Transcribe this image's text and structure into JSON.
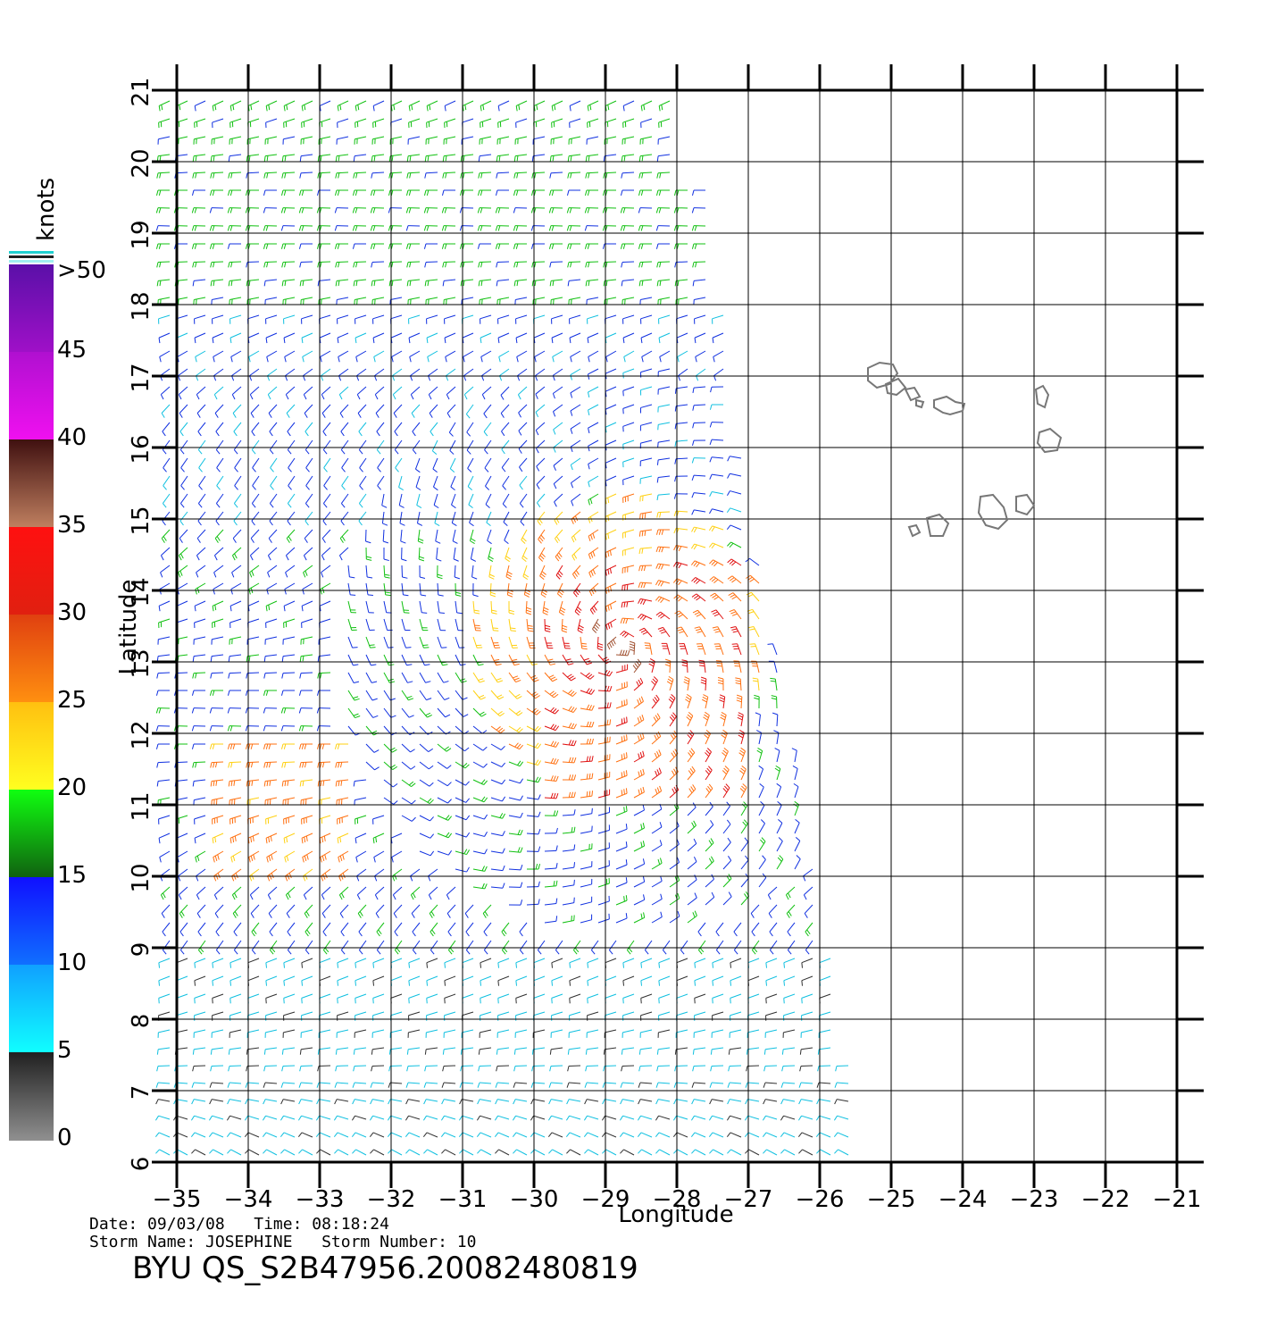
{
  "title": "BYU QS_S2B47956.20082480819",
  "info": {
    "date_line": "Date: 09/03/08   Time: 08:18:24",
    "storm_line": "Storm Name: JOSEPHINE   Storm Number: 10"
  },
  "axes": {
    "xlabel": "Longitude",
    "ylabel": "Latitude",
    "x_ticks": [
      "−35",
      "−34",
      "−33",
      "−32",
      "−31",
      "−30",
      "−29",
      "−28",
      "−27",
      "−26",
      "−25",
      "−24",
      "−23",
      "−22",
      "−21"
    ],
    "y_ticks": [
      "6",
      "7",
      "8",
      "9",
      "10",
      "11",
      "12",
      "13",
      "14",
      "15",
      "16",
      "17",
      "18",
      "19",
      "20",
      "21"
    ],
    "xlim": [
      -35,
      -21
    ],
    "ylim": [
      6,
      21
    ]
  },
  "colorbar": {
    "unit": "knots",
    "labels": [
      ">50",
      "45",
      "40",
      "35",
      "30",
      "25",
      "20",
      "15",
      "10",
      "5",
      "0"
    ],
    "bands": [
      {
        "from": 50,
        "to": 45,
        "top": "#5a10a8",
        "bottom": "#a010c8"
      },
      {
        "from": 45,
        "to": 40,
        "top": "#b010d0",
        "bottom": "#f010f0"
      },
      {
        "from": 40,
        "to": 35,
        "top": "#401010",
        "bottom": "#c08060"
      },
      {
        "from": 35,
        "to": 30,
        "top": "#ff1010",
        "bottom": "#e02010"
      },
      {
        "from": 30,
        "to": 25,
        "top": "#e04010",
        "bottom": "#ff9010"
      },
      {
        "from": 25,
        "to": 20,
        "top": "#ffc010",
        "bottom": "#ffff20"
      },
      {
        "from": 20,
        "to": 15,
        "top": "#10ff10",
        "bottom": "#106010"
      },
      {
        "from": 15,
        "to": 10,
        "top": "#1010ff",
        "bottom": "#1070ff"
      },
      {
        "from": 10,
        "to": 5,
        "top": "#10a0ff",
        "bottom": "#10ffff"
      },
      {
        "from": 5,
        "to": 0,
        "top": "#202020",
        "bottom": "#909090"
      }
    ]
  },
  "chart_data": {
    "type": "wind-barb-map",
    "title": "BYU QS_S2B47956.20082480819",
    "xlabel": "Longitude",
    "ylabel": "Latitude",
    "xlim": [
      -35,
      -21
    ],
    "ylim": [
      6,
      21
    ],
    "storm_center_approx": {
      "lon": -28.8,
      "lat": 13.2
    },
    "speed_regions": [
      {
        "name": "northern band",
        "lon": [
          -35,
          -28
        ],
        "lat": [
          18,
          21
        ],
        "speed_kt": 17
      },
      {
        "name": "blue band",
        "lon": [
          -35,
          -29
        ],
        "lat": [
          15,
          18
        ],
        "speed_kt": 12
      },
      {
        "name": "storm core",
        "lon": [
          -30,
          -27
        ],
        "lat": [
          11,
          14.5
        ],
        "speed_kt": 28
      },
      {
        "name": "western rainband",
        "lon": [
          -34.5,
          -32.5
        ],
        "lat": [
          10,
          12
        ],
        "speed_kt": 27
      },
      {
        "name": "southern light winds",
        "lon": [
          -35,
          -26
        ],
        "lat": [
          6,
          9
        ],
        "speed_kt": 7
      }
    ],
    "land_outlines": [
      "Cape Verde Islands"
    ]
  }
}
